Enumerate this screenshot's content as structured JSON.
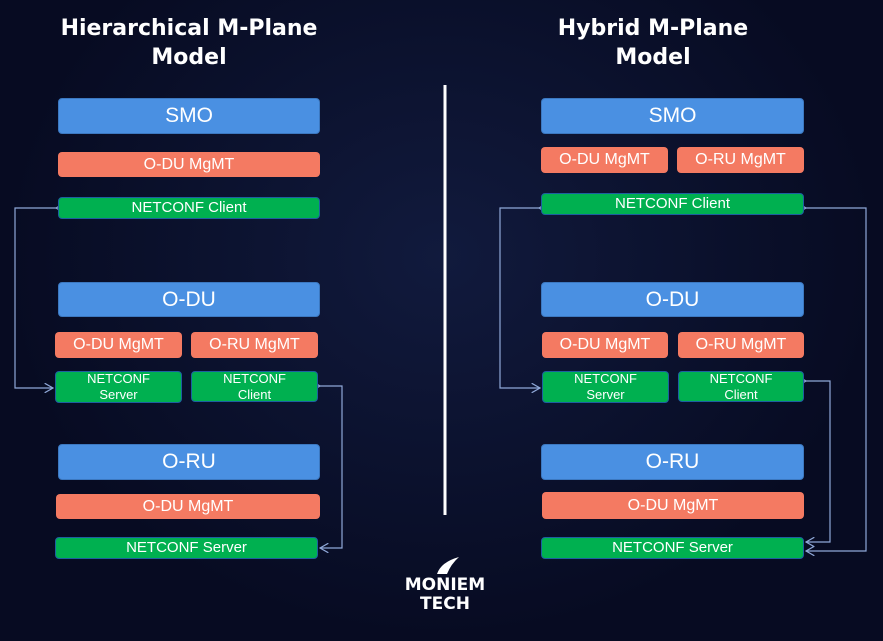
{
  "left": {
    "title": [
      "Hierarchical M-Plane",
      "Model"
    ],
    "smo": "SMO",
    "smo_mgmt": "O-DU MgMT",
    "smo_client": "NETCONF Client",
    "odu": "O-DU",
    "odu_mgmt1": "O-DU MgMT",
    "odu_mgmt2": "O-RU MgMT",
    "odu_server": "NETCONF Server",
    "odu_client": "NETCONF Client",
    "oru": "O-RU",
    "oru_mgmt": "O-DU MgMT",
    "oru_server": "NETCONF Server"
  },
  "right": {
    "title": [
      "Hybrid M-Plane",
      "Model"
    ],
    "smo": "SMO",
    "smo_mgmt1": "O-DU MgMT",
    "smo_mgmt2": "O-RU MgMT",
    "smo_client": "NETCONF Client",
    "odu": "O-DU",
    "odu_mgmt1": "O-DU MgMT",
    "odu_mgmt2": "O-RU MgMT",
    "odu_server": "NETCONF Server",
    "odu_client": "NETCONF Client",
    "oru": "O-RU",
    "oru_mgmt": "O-DU MgMT",
    "oru_server": "NETCONF Server"
  },
  "logo": {
    "line1": "MONIEM",
    "line2": "TECH"
  },
  "colors": {
    "entity": "#4a90e2",
    "mgmt": "#f47a62",
    "netconf": "#00b050",
    "arrow": "#8fa8d8",
    "background": "#0a0f2a"
  }
}
